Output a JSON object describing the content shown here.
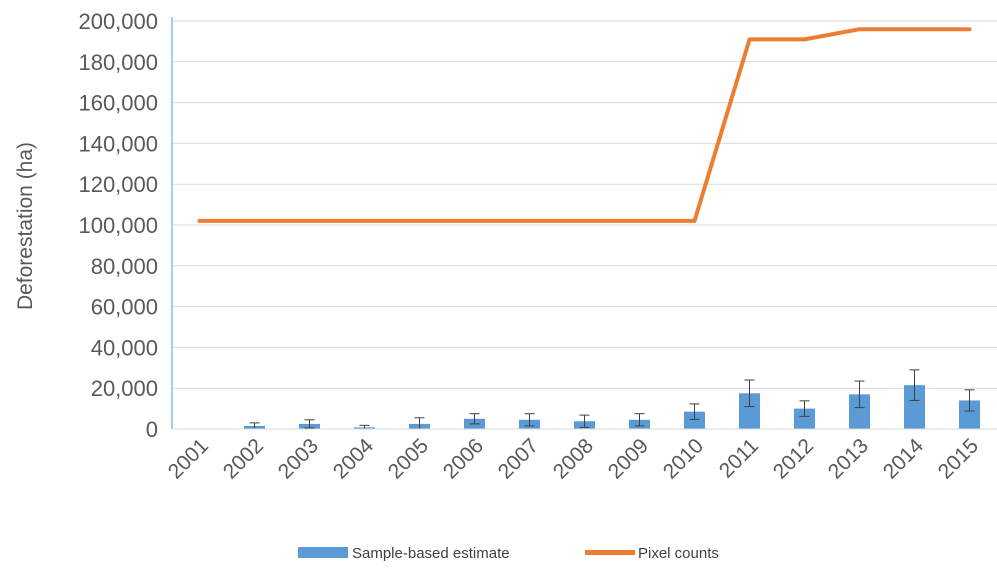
{
  "chart_data": {
    "type": "bar",
    "ylabel": "Deforestation (ha)",
    "xlabel": "",
    "ylim": [
      0,
      200000
    ],
    "yticks": [
      "0",
      "20,000",
      "40,000",
      "60,000",
      "80,000",
      "100,000",
      "120,000",
      "140,000",
      "160,000",
      "180,000",
      "200,000"
    ],
    "categories": [
      "2001",
      "2002",
      "2003",
      "2004",
      "2005",
      "2006",
      "2007",
      "2008",
      "2009",
      "2010",
      "2011",
      "2012",
      "2013",
      "2014",
      "2015"
    ],
    "grid": true,
    "legend_position": "bottom",
    "series": [
      {
        "name": "Sample-based estimate",
        "kind": "bar",
        "color": "#5B9BD5",
        "values": [
          0,
          1500,
          2500,
          800,
          2500,
          5000,
          4500,
          3800,
          4500,
          8500,
          17500,
          10000,
          17000,
          21500,
          14000
        ],
        "error": [
          0,
          1500,
          2000,
          1000,
          3000,
          2500,
          3000,
          3000,
          3000,
          3800,
          6500,
          3800,
          6500,
          7500,
          5200
        ]
      },
      {
        "name": "Pixel counts",
        "kind": "line",
        "color": "#ED7D31",
        "values": [
          102000,
          102000,
          102000,
          102000,
          102000,
          102000,
          102000,
          102000,
          102000,
          102000,
          191000,
          191000,
          196000,
          196000,
          196000
        ]
      }
    ]
  }
}
